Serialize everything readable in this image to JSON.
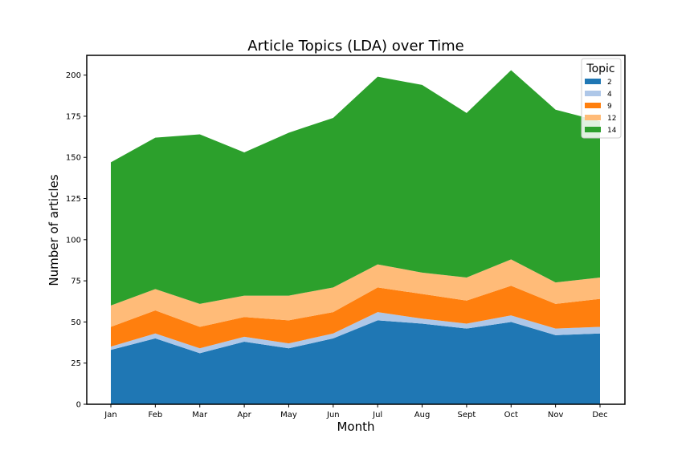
{
  "chart_data": {
    "type": "area",
    "stacked": true,
    "title": "Article Topics (LDA) over Time",
    "xlabel": "Month",
    "ylabel": "Number of articles",
    "categories": [
      "Jan",
      "Feb",
      "Mar",
      "Apr",
      "May",
      "Jun",
      "Jul",
      "Aug",
      "Sept",
      "Oct",
      "Nov",
      "Dec"
    ],
    "ylim": [
      0,
      212
    ],
    "yticks": [
      0,
      25,
      50,
      75,
      100,
      125,
      150,
      175,
      200
    ],
    "grid": false,
    "legend": {
      "title": "Topic",
      "position": "top-right"
    },
    "series": [
      {
        "name": "2",
        "color": "#1f77b4",
        "values": [
          33,
          40,
          31,
          38,
          34,
          40,
          51,
          49,
          46,
          50,
          42,
          43
        ]
      },
      {
        "name": "4",
        "color": "#aec7e8",
        "values": [
          2,
          3,
          3,
          3,
          3,
          3,
          5,
          3,
          3,
          4,
          4,
          4
        ]
      },
      {
        "name": "9",
        "color": "#ff7f0e",
        "values": [
          12,
          14,
          13,
          12,
          14,
          13,
          15,
          15,
          14,
          18,
          15,
          17
        ]
      },
      {
        "name": "12",
        "color": "#ffbb78",
        "values": [
          13,
          13,
          14,
          13,
          15,
          15,
          14,
          13,
          14,
          16,
          13,
          13
        ]
      },
      {
        "name": "14",
        "color": "#2ca02c",
        "values": [
          87,
          92,
          103,
          87,
          99,
          103,
          114,
          114,
          100,
          115,
          105,
          95
        ]
      }
    ]
  }
}
